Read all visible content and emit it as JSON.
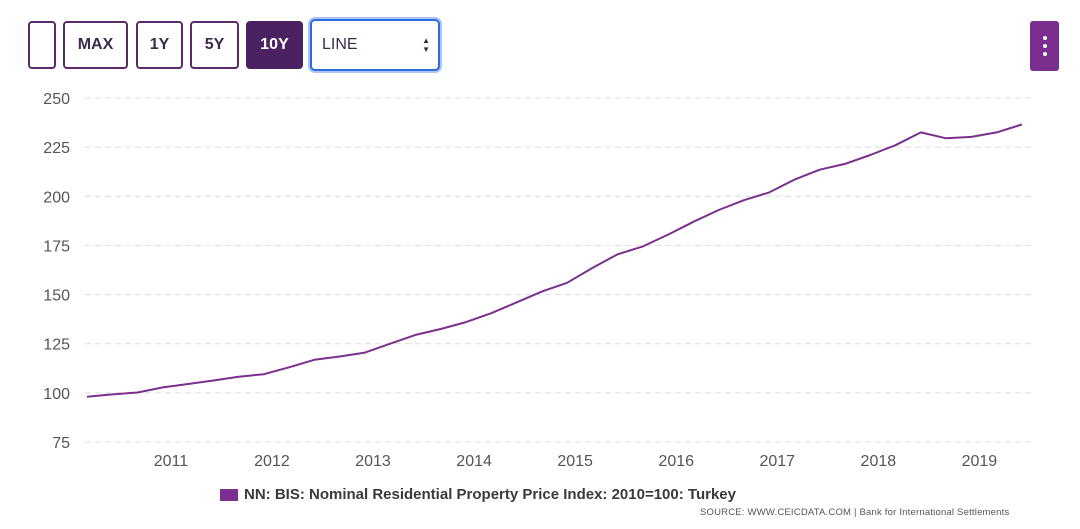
{
  "toolbar": {
    "buttons": [
      {
        "label": "",
        "active": false
      },
      {
        "label": "MAX",
        "active": false
      },
      {
        "label": "1Y",
        "active": false
      },
      {
        "label": "5Y",
        "active": false
      },
      {
        "label": "10Y",
        "active": true
      }
    ],
    "chart_type_select": "LINE",
    "menu_icon": "kebab-menu-icon"
  },
  "legend": {
    "label": "NN: BIS: Nominal Residential Property Price Index: 2010=100: Turkey",
    "color": "#7b2f8e"
  },
  "source": "SOURCE: WWW.CEICDATA.COM | Bank for International Settlements",
  "chart_data": {
    "type": "line",
    "title": "",
    "ylim": [
      75,
      250
    ],
    "yticks": [
      75,
      100,
      125,
      150,
      175,
      200,
      225,
      250
    ],
    "xlim": [
      2010.15,
      2019.55
    ],
    "xticks": [
      "2011",
      "2012",
      "2013",
      "2014",
      "2015",
      "2016",
      "2017",
      "2018",
      "2019"
    ],
    "grid": true,
    "series": [
      {
        "name": "NN: BIS: Nominal Residential Property Price Index: 2010=100: Turkey",
        "color": "#7b2f8e",
        "x": [
          2010.17,
          2010.42,
          2010.67,
          2010.92,
          2011.17,
          2011.42,
          2011.67,
          2011.92,
          2012.17,
          2012.42,
          2012.67,
          2012.92,
          2013.17,
          2013.42,
          2013.67,
          2013.92,
          2014.17,
          2014.42,
          2014.67,
          2014.92,
          2015.17,
          2015.42,
          2015.67,
          2015.92,
          2016.17,
          2016.42,
          2016.67,
          2016.92,
          2017.17,
          2017.42,
          2017.67,
          2017.92,
          2018.17,
          2018.42,
          2018.67,
          2018.92,
          2019.17,
          2019.42
        ],
        "y": [
          98,
          99.2,
          100.2,
          102.8,
          104.5,
          106.3,
          108.2,
          109.5,
          113,
          116.8,
          118.5,
          120.5,
          125,
          129.5,
          132.5,
          136,
          140.5,
          146,
          151.5,
          156,
          163.5,
          170.5,
          174.5,
          180.5,
          187,
          193,
          198,
          202,
          208.5,
          213.5,
          216.5,
          221,
          226,
          232.5,
          229.5,
          230.2,
          232.5,
          236.5
        ]
      }
    ]
  }
}
